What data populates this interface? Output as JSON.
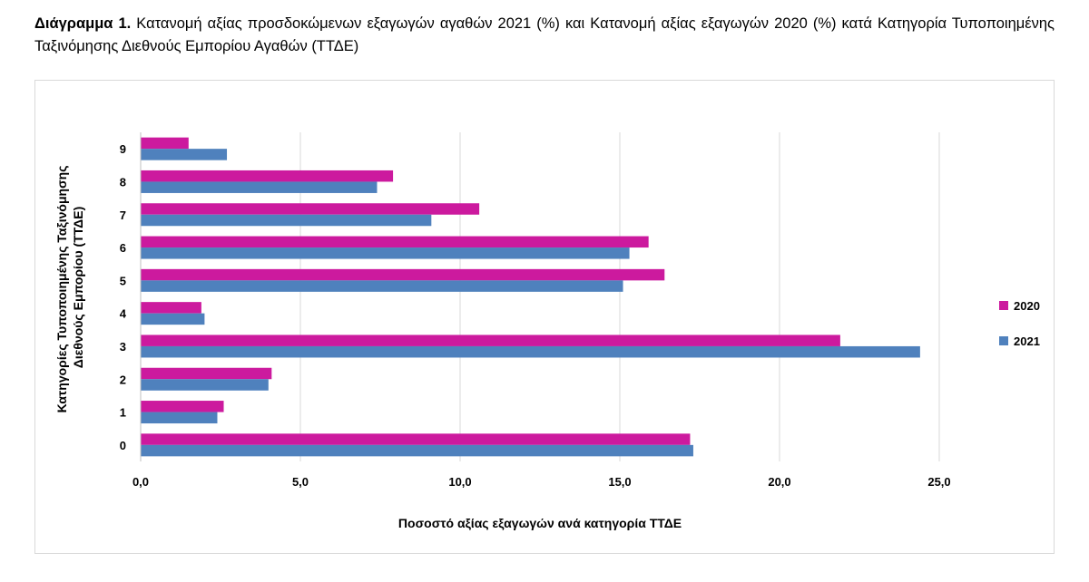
{
  "caption": {
    "label": "Διάγραμμα 1.",
    "text": "Κατανομή αξίας προσδοκώμενων εξαγωγών αγαθών 2021 (%) και Κατανομή αξίας εξαγωγών 2020 (%) κατά Κατηγορία Τυποποιημένης Ταξινόμησης Διεθνούς Εμπορίου Αγαθών (ΤΤΔΕ)"
  },
  "chart_data": {
    "type": "bar",
    "orientation": "horizontal",
    "categories": [
      "0",
      "1",
      "2",
      "3",
      "4",
      "5",
      "6",
      "7",
      "8",
      "9"
    ],
    "series": [
      {
        "name": "2020",
        "color": "#cc1a9e",
        "values": [
          17.2,
          2.6,
          4.1,
          21.9,
          1.9,
          16.4,
          15.9,
          10.6,
          7.9,
          1.5
        ]
      },
      {
        "name": "2021",
        "color": "#4f81bd",
        "values": [
          17.3,
          2.4,
          4.0,
          24.4,
          2.0,
          15.1,
          15.3,
          9.1,
          7.4,
          2.7
        ]
      }
    ],
    "xlim": [
      0,
      25
    ],
    "xticks": [
      "0,0",
      "5,0",
      "10,0",
      "15,0",
      "20,0",
      "25,0"
    ],
    "xlabel": "Ποσοστό αξίας εξαγωγών ανά κατηγορία ΤΤΔΕ",
    "ylabel_lines": [
      "Κατηγορίες Τυποποιημένης Ταξινόμησης",
      "Διεθνούς Εμπορίου (ΤΤΔΕ)"
    ],
    "grid": true,
    "legend_position": "right"
  }
}
